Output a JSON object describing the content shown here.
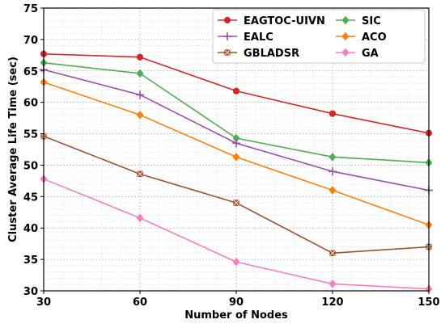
{
  "chart_data": {
    "type": "line",
    "xlabel": "Number of Nodes",
    "ylabel": "Cluster Average Life Time (sec)",
    "x": [
      30,
      60,
      90,
      120,
      150
    ],
    "xlim": [
      30,
      150
    ],
    "ylim": [
      30,
      75
    ],
    "y_ticks": [
      30,
      35,
      40,
      45,
      50,
      55,
      60,
      65,
      70,
      75
    ],
    "grid": true,
    "legend_position": "top-right",
    "series": [
      {
        "name": "EAGTOC-UIVN",
        "color": "#d62728",
        "marker": "circle",
        "values": [
          67.7,
          67.2,
          61.8,
          58.2,
          55.1
        ]
      },
      {
        "name": "SIC",
        "color": "#4caf50",
        "marker": "diamond",
        "values": [
          66.3,
          64.6,
          54.3,
          51.3,
          50.4
        ]
      },
      {
        "name": "EALC",
        "color": "#9c4dab",
        "marker": "plus",
        "values": [
          65.2,
          61.2,
          53.5,
          49.0,
          46.0
        ]
      },
      {
        "name": "ACO",
        "color": "#ff7f0e",
        "marker": "diamond",
        "values": [
          63.2,
          58.0,
          51.3,
          46.0,
          40.5
        ]
      },
      {
        "name": "GBLADSR",
        "color": "#a0522d",
        "marker": "square-x",
        "values": [
          54.6,
          48.6,
          44.0,
          36.0,
          37.0
        ]
      },
      {
        "name": "GA",
        "color": "#f47fc3",
        "marker": "diamond",
        "values": [
          47.8,
          41.6,
          34.6,
          31.1,
          30.3
        ]
      }
    ]
  }
}
